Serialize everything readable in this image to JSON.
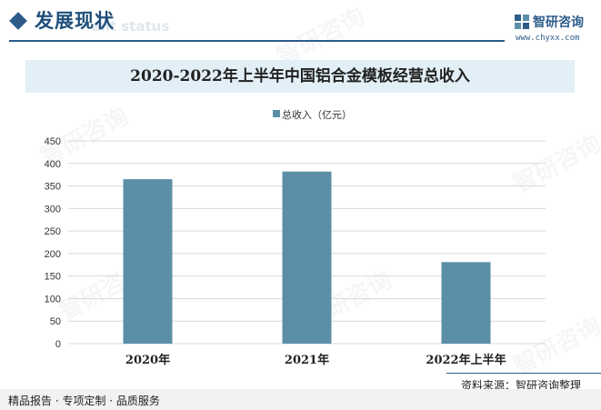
{
  "header": {
    "title": "发展现状",
    "ghost_text": "ent status"
  },
  "logo": {
    "name": "智研咨询",
    "url": "www.chyxx.com"
  },
  "watermark": {
    "text": "智研咨询"
  },
  "chart_data": {
    "type": "bar",
    "title": "2020-2022年上半年中国铝合金模板经营总收入",
    "categories": [
      "2020年",
      "2021年",
      "2022年上半年"
    ],
    "series": [
      {
        "name": "总收入（亿元）",
        "values": [
          365,
          382,
          181
        ],
        "color": "#5b8fa8"
      }
    ],
    "ylim": [
      0,
      450
    ],
    "yticks": [
      0,
      50,
      100,
      150,
      200,
      250,
      300,
      350,
      400,
      450
    ],
    "grid": true,
    "legend_position": "top-center",
    "xlabel": "",
    "ylabel": ""
  },
  "footer": {
    "source": "资料来源：智研咨询整理",
    "slogan": "精品报告 · 专项定制 · 品质服务"
  }
}
